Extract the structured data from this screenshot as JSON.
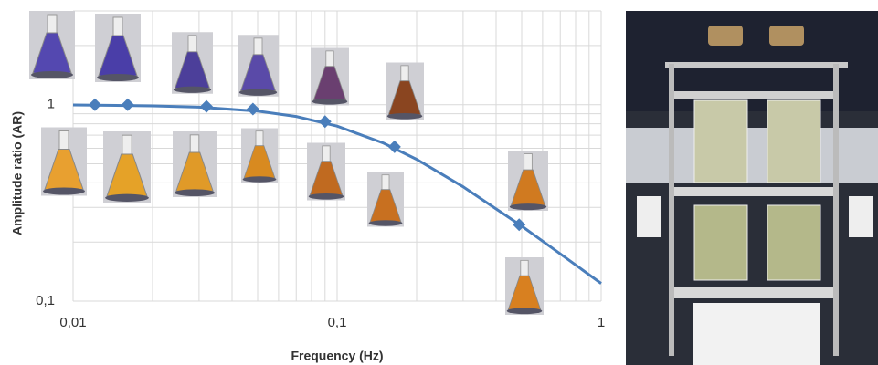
{
  "chart_data": {
    "type": "line",
    "xlabel": "Frequency (Hz)",
    "ylabel": "Amplitude ratio (AR)",
    "xscale": "log",
    "yscale": "log",
    "grid": true,
    "xlim": [
      0.01,
      1
    ],
    "ylim": [
      0.1,
      3
    ],
    "xticks": [
      {
        "value": 0.01,
        "label": "0,01"
      },
      {
        "value": 0.1,
        "label": "0,1"
      },
      1
    ],
    "yticks": [
      {
        "value": 0.1,
        "label": "0,1"
      },
      1
    ],
    "series": [
      {
        "color": "#4a7ebb",
        "markers": true,
        "line": false,
        "x": [
          0.0121,
          0.0161,
          0.032,
          0.048,
          0.09,
          0.165,
          0.489
        ],
        "values": [
          1,
          1,
          0.98,
          0.95,
          0.82,
          0.61,
          0.245
        ]
      },
      {
        "color": "#4a7ebb",
        "markers": false,
        "line": true,
        "x": [
          0.01,
          0.02,
          0.03,
          0.05,
          0.07,
          0.1,
          0.15,
          0.2,
          0.3,
          0.5,
          0.7,
          1
        ],
        "values": [
          0.997,
          0.987,
          0.972,
          0.927,
          0.871,
          0.778,
          0.637,
          0.527,
          0.382,
          0.241,
          0.174,
          0.123
        ]
      }
    ]
  }
}
